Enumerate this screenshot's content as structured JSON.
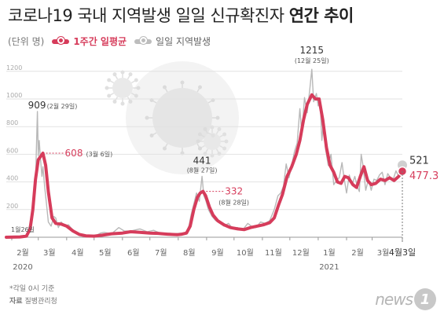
{
  "title": {
    "main": "코로나19 국내 지역발생 일일 신규확진자 ",
    "bold": "연간 추이"
  },
  "legend": {
    "unit": "(단위 명)",
    "series1": "1주간 일평균",
    "series2": "일일 지역발생"
  },
  "footnote": "*각일 0시 기준",
  "source_label": "자료",
  "source_value": "질병관리청",
  "logo": {
    "word": "news",
    "num": "1"
  },
  "colors": {
    "avg": "#d63c5b",
    "daily": "#b8b8b8"
  },
  "chart_data": {
    "type": "line",
    "ylim": [
      0,
      1250
    ],
    "yticks": [
      0,
      200,
      400,
      600,
      800,
      1000,
      1200
    ],
    "grid": true,
    "x_start": "2020-01-26",
    "x_end": "2021-04-03",
    "month_ticks": [
      {
        "date": "2020-02-01",
        "label": "2월"
      },
      {
        "date": "2020-03-01",
        "label": "3월"
      },
      {
        "date": "2020-04-01",
        "label": "4월"
      },
      {
        "date": "2020-05-01",
        "label": "5월"
      },
      {
        "date": "2020-06-01",
        "label": "6월"
      },
      {
        "date": "2020-07-01",
        "label": "7월"
      },
      {
        "date": "2020-08-01",
        "label": "8월"
      },
      {
        "date": "2020-09-01",
        "label": "9월"
      },
      {
        "date": "2020-10-01",
        "label": "10월"
      },
      {
        "date": "2020-11-01",
        "label": "11월"
      },
      {
        "date": "2020-12-01",
        "label": "12월"
      },
      {
        "date": "2021-01-01",
        "label": "1월"
      },
      {
        "date": "2021-02-01",
        "label": "2월"
      },
      {
        "date": "2021-03-01",
        "label": "3월"
      },
      {
        "date": "2021-04-03",
        "label": "4월3일"
      }
    ],
    "year_labels": [
      {
        "date": "2020-02-01",
        "label": "2020"
      },
      {
        "date": "2021-01-01",
        "label": "2021"
      }
    ],
    "series": [
      {
        "name": "1주간 일평균",
        "points": [
          [
            "2020-01-26",
            0
          ],
          [
            "2020-02-10",
            2
          ],
          [
            "2020-02-17",
            8
          ],
          [
            "2020-02-21",
            60
          ],
          [
            "2020-02-24",
            200
          ],
          [
            "2020-02-27",
            420
          ],
          [
            "2020-03-01",
            560
          ],
          [
            "2020-03-06",
            608
          ],
          [
            "2020-03-09",
            520
          ],
          [
            "2020-03-12",
            330
          ],
          [
            "2020-03-16",
            140
          ],
          [
            "2020-03-20",
            100
          ],
          [
            "2020-03-26",
            95
          ],
          [
            "2020-04-01",
            80
          ],
          [
            "2020-04-08",
            45
          ],
          [
            "2020-04-15",
            20
          ],
          [
            "2020-04-22",
            10
          ],
          [
            "2020-05-01",
            8
          ],
          [
            "2020-05-10",
            15
          ],
          [
            "2020-05-20",
            25
          ],
          [
            "2020-06-01",
            30
          ],
          [
            "2020-06-10",
            40
          ],
          [
            "2020-06-20",
            35
          ],
          [
            "2020-07-01",
            30
          ],
          [
            "2020-07-10",
            28
          ],
          [
            "2020-07-20",
            22
          ],
          [
            "2020-07-31",
            18
          ],
          [
            "2020-08-05",
            22
          ],
          [
            "2020-08-10",
            30
          ],
          [
            "2020-08-14",
            80
          ],
          [
            "2020-08-18",
            200
          ],
          [
            "2020-08-22",
            290
          ],
          [
            "2020-08-25",
            320
          ],
          [
            "2020-08-28",
            332
          ],
          [
            "2020-08-31",
            300
          ],
          [
            "2020-09-04",
            220
          ],
          [
            "2020-09-08",
            160
          ],
          [
            "2020-09-13",
            120
          ],
          [
            "2020-09-20",
            90
          ],
          [
            "2020-09-27",
            70
          ],
          [
            "2020-10-05",
            60
          ],
          [
            "2020-10-12",
            55
          ],
          [
            "2020-10-19",
            70
          ],
          [
            "2020-10-26",
            80
          ],
          [
            "2020-11-02",
            90
          ],
          [
            "2020-11-09",
            105
          ],
          [
            "2020-11-14",
            140
          ],
          [
            "2020-11-19",
            240
          ],
          [
            "2020-11-23",
            310
          ],
          [
            "2020-11-28",
            440
          ],
          [
            "2020-12-03",
            510
          ],
          [
            "2020-12-08",
            600
          ],
          [
            "2020-12-12",
            700
          ],
          [
            "2020-12-16",
            850
          ],
          [
            "2020-12-20",
            960
          ],
          [
            "2020-12-25",
            1030
          ],
          [
            "2020-12-29",
            1000
          ],
          [
            "2021-01-02",
            1000
          ],
          [
            "2021-01-06",
            850
          ],
          [
            "2021-01-10",
            650
          ],
          [
            "2021-01-14",
            520
          ],
          [
            "2021-01-18",
            470
          ],
          [
            "2021-01-22",
            400
          ],
          [
            "2021-01-26",
            390
          ],
          [
            "2021-01-30",
            440
          ],
          [
            "2021-02-03",
            430
          ],
          [
            "2021-02-08",
            380
          ],
          [
            "2021-02-12",
            360
          ],
          [
            "2021-02-16",
            440
          ],
          [
            "2021-02-20",
            510
          ],
          [
            "2021-02-24",
            410
          ],
          [
            "2021-02-28",
            380
          ],
          [
            "2021-03-05",
            390
          ],
          [
            "2021-03-10",
            420
          ],
          [
            "2021-03-15",
            410
          ],
          [
            "2021-03-20",
            430
          ],
          [
            "2021-03-25",
            410
          ],
          [
            "2021-03-30",
            440
          ],
          [
            "2021-04-03",
            477.3
          ]
        ]
      },
      {
        "name": "일일 지역발생",
        "points": [
          [
            "2020-01-26",
            0
          ],
          [
            "2020-02-10",
            1
          ],
          [
            "2020-02-18",
            20
          ],
          [
            "2020-02-21",
            100
          ],
          [
            "2020-02-23",
            170
          ],
          [
            "2020-02-25",
            300
          ],
          [
            "2020-02-27",
            400
          ],
          [
            "2020-02-29",
            909
          ],
          [
            "2020-03-01",
            590
          ],
          [
            "2020-03-02",
            700
          ],
          [
            "2020-03-03",
            600
          ],
          [
            "2020-03-04",
            520
          ],
          [
            "2020-03-05",
            440
          ],
          [
            "2020-03-06",
            510
          ],
          [
            "2020-03-08",
            360
          ],
          [
            "2020-03-10",
            240
          ],
          [
            "2020-03-12",
            110
          ],
          [
            "2020-03-15",
            80
          ],
          [
            "2020-03-18",
            150
          ],
          [
            "2020-03-20",
            140
          ],
          [
            "2020-03-23",
            70
          ],
          [
            "2020-03-26",
            110
          ],
          [
            "2020-03-30",
            80
          ],
          [
            "2020-04-03",
            90
          ],
          [
            "2020-04-08",
            50
          ],
          [
            "2020-04-12",
            30
          ],
          [
            "2020-04-18",
            10
          ],
          [
            "2020-04-25",
            8
          ],
          [
            "2020-05-01",
            5
          ],
          [
            "2020-05-08",
            30
          ],
          [
            "2020-05-12",
            35
          ],
          [
            "2020-05-20",
            25
          ],
          [
            "2020-05-28",
            70
          ],
          [
            "2020-06-03",
            45
          ],
          [
            "2020-06-10",
            45
          ],
          [
            "2020-06-20",
            60
          ],
          [
            "2020-06-28",
            40
          ],
          [
            "2020-07-05",
            50
          ],
          [
            "2020-07-12",
            30
          ],
          [
            "2020-07-20",
            30
          ],
          [
            "2020-07-28",
            25
          ],
          [
            "2020-08-05",
            30
          ],
          [
            "2020-08-10",
            30
          ],
          [
            "2020-08-13",
            90
          ],
          [
            "2020-08-15",
            160
          ],
          [
            "2020-08-18",
            240
          ],
          [
            "2020-08-21",
            320
          ],
          [
            "2020-08-24",
            260
          ],
          [
            "2020-08-27",
            441
          ],
          [
            "2020-08-29",
            300
          ],
          [
            "2020-08-31",
            270
          ],
          [
            "2020-09-03",
            200
          ],
          [
            "2020-09-07",
            150
          ],
          [
            "2020-09-11",
            120
          ],
          [
            "2020-09-15",
            110
          ],
          [
            "2020-09-20",
            80
          ],
          [
            "2020-09-25",
            100
          ],
          [
            "2020-09-30",
            60
          ],
          [
            "2020-10-05",
            70
          ],
          [
            "2020-10-10",
            50
          ],
          [
            "2020-10-16",
            100
          ],
          [
            "2020-10-20",
            80
          ],
          [
            "2020-10-25",
            70
          ],
          [
            "2020-10-30",
            110
          ],
          [
            "2020-11-04",
            100
          ],
          [
            "2020-11-09",
            120
          ],
          [
            "2020-11-14",
            200
          ],
          [
            "2020-11-18",
            300
          ],
          [
            "2020-11-21",
            320
          ],
          [
            "2020-11-24",
            370
          ],
          [
            "2020-11-27",
            530
          ],
          [
            "2020-11-30",
            430
          ],
          [
            "2020-12-03",
            520
          ],
          [
            "2020-12-06",
            620
          ],
          [
            "2020-12-09",
            680
          ],
          [
            "2020-12-12",
            930
          ],
          [
            "2020-12-14",
            750
          ],
          [
            "2020-12-17",
            1010
          ],
          [
            "2020-12-20",
            900
          ],
          [
            "2020-12-23",
            1080
          ],
          [
            "2020-12-25",
            1215
          ],
          [
            "2020-12-27",
            980
          ],
          [
            "2020-12-30",
            1040
          ],
          [
            "2021-01-01",
            950
          ],
          [
            "2021-01-03",
            1000
          ],
          [
            "2021-01-05",
            700
          ],
          [
            "2021-01-07",
            850
          ],
          [
            "2021-01-09",
            640
          ],
          [
            "2021-01-12",
            520
          ],
          [
            "2021-01-15",
            600
          ],
          [
            "2021-01-18",
            380
          ],
          [
            "2021-01-21",
            410
          ],
          [
            "2021-01-24",
            430
          ],
          [
            "2021-01-27",
            540
          ],
          [
            "2021-01-29",
            440
          ],
          [
            "2021-02-01",
            320
          ],
          [
            "2021-02-04",
            450
          ],
          [
            "2021-02-07",
            380
          ],
          [
            "2021-02-10",
            440
          ],
          [
            "2021-02-13",
            360
          ],
          [
            "2021-02-15",
            330
          ],
          [
            "2021-02-17",
            600
          ],
          [
            "2021-02-19",
            520
          ],
          [
            "2021-02-22",
            340
          ],
          [
            "2021-02-25",
            420
          ],
          [
            "2021-02-28",
            340
          ],
          [
            "2021-03-03",
            420
          ],
          [
            "2021-03-06",
            410
          ],
          [
            "2021-03-09",
            450
          ],
          [
            "2021-03-12",
            470
          ],
          [
            "2021-03-15",
            380
          ],
          [
            "2021-03-18",
            460
          ],
          [
            "2021-03-21",
            430
          ],
          [
            "2021-03-24",
            420
          ],
          [
            "2021-03-27",
            480
          ],
          [
            "2021-03-30",
            440
          ],
          [
            "2021-04-03",
            521
          ]
        ]
      }
    ],
    "annotations": [
      {
        "text": "909",
        "sub": "(2월 29일)",
        "date": "2020-02-29",
        "value": 909,
        "series": "daily"
      },
      {
        "text": "608",
        "sub": "(3월 6일)",
        "date": "2020-03-06",
        "value": 608,
        "series": "avg"
      },
      {
        "text": "441",
        "sub": "(8월 27일)",
        "date": "2020-08-27",
        "value": 441,
        "series": "daily"
      },
      {
        "text": "332",
        "sub": "(8월 28일)",
        "date": "2020-08-28",
        "value": 332,
        "series": "avg"
      },
      {
        "text": "1215",
        "sub": "(12월 25일)",
        "date": "2020-12-25",
        "value": 1215,
        "series": "daily"
      },
      {
        "text": "521",
        "sub": "",
        "date": "2021-04-03",
        "value": 521,
        "series": "daily"
      },
      {
        "text": "477.3",
        "sub": "",
        "date": "2021-04-03",
        "value": 477.3,
        "series": "avg"
      },
      {
        "text": "1월26일",
        "sub": "",
        "date": "2020-01-26",
        "value": 0,
        "series": "start"
      }
    ]
  }
}
